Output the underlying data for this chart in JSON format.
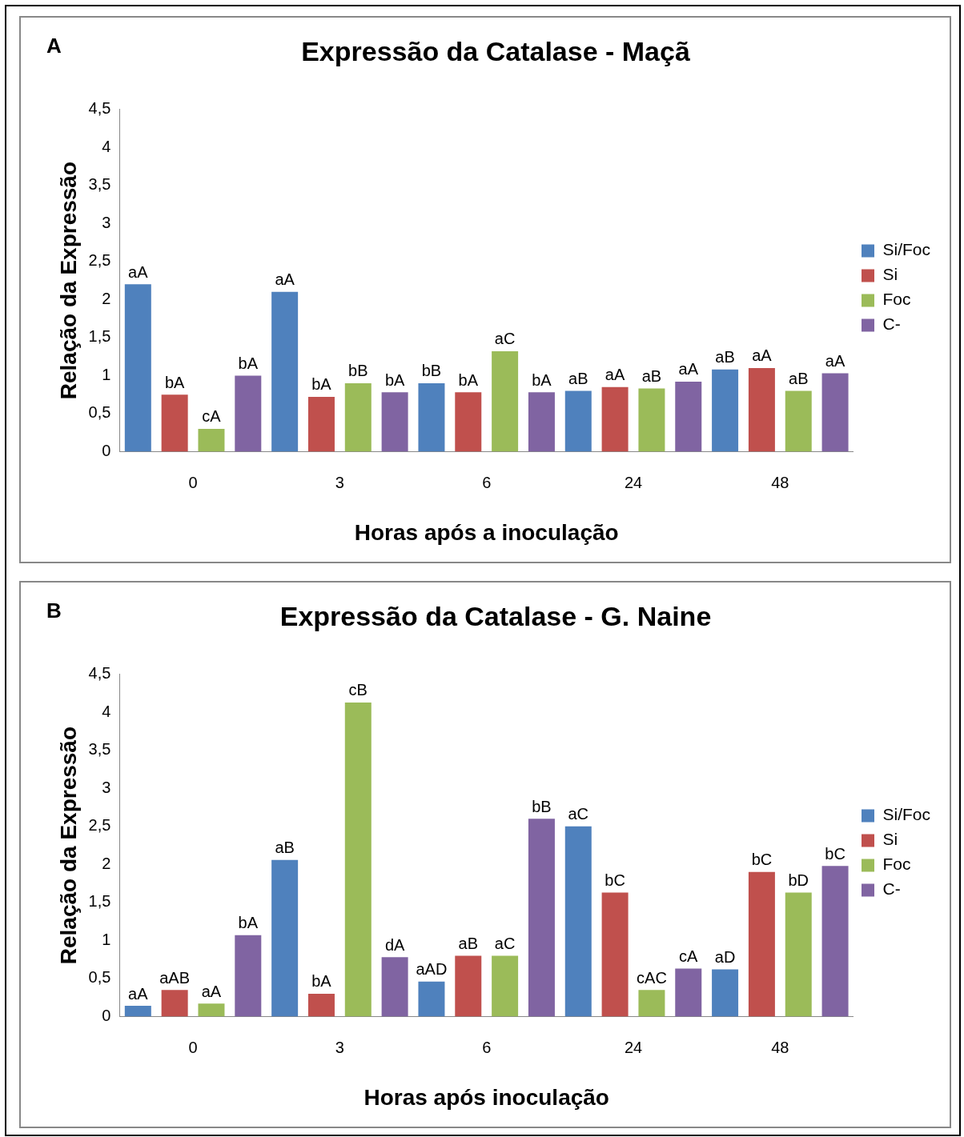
{
  "chart_data": [
    {
      "type": "bar",
      "title": "Expressão da Catalase - Maçã",
      "annotations": [
        "A"
      ],
      "xlabel": "Horas após a inoculação",
      "ylabel": "Relação da Expressão",
      "categories": [
        "0",
        "3",
        "6",
        "24",
        "48"
      ],
      "ylim": [
        0,
        4.5
      ],
      "yticks": [
        0,
        {
          "value": 0.5,
          "label": "0,5"
        },
        1,
        {
          "value": 1.5,
          "label": "1,5"
        },
        2,
        {
          "value": 2.5,
          "label": "2,5"
        },
        3,
        {
          "value": 3.5,
          "label": "3,5"
        },
        4,
        {
          "value": 4.5,
          "label": "4,5"
        }
      ],
      "grid": false,
      "legend": "right",
      "series": [
        {
          "name": "Si/Foc",
          "color": "#4f81bd",
          "values": [
            2.2,
            2.1,
            0.9,
            0.8,
            1.08
          ],
          "value_labels": [
            "aA",
            "aA",
            "bB",
            "aB",
            "aB"
          ]
        },
        {
          "name": "Si",
          "color": "#c0504d",
          "values": [
            0.75,
            0.72,
            0.78,
            0.85,
            1.1
          ],
          "value_labels": [
            "bA",
            "bA",
            "bA",
            "aA",
            "aA"
          ]
        },
        {
          "name": "Foc",
          "color": "#9bbb59",
          "values": [
            0.3,
            0.9,
            1.32,
            0.83,
            0.8
          ],
          "value_labels": [
            "cA",
            "bB",
            "aC",
            "aB",
            "aB"
          ]
        },
        {
          "name": "C-",
          "color": "#8064a2",
          "values": [
            1.0,
            0.78,
            0.78,
            0.92,
            1.03
          ],
          "value_labels": [
            "bA",
            "bA",
            "bA",
            "aA",
            "aA"
          ]
        }
      ]
    },
    {
      "type": "bar",
      "title": "Expressão da Catalase - G. Naine",
      "annotations": [
        "B"
      ],
      "xlabel": "Horas após inoculação",
      "ylabel": "Relação da Expressão",
      "categories": [
        "0",
        "3",
        "6",
        "24",
        "48"
      ],
      "ylim": [
        0,
        4.5
      ],
      "yticks": [
        0,
        {
          "value": 0.5,
          "label": "0,5"
        },
        1,
        {
          "value": 1.5,
          "label": "1,5"
        },
        2,
        {
          "value": 2.5,
          "label": "2,5"
        },
        3,
        {
          "value": 3.5,
          "label": "3,5"
        },
        4,
        {
          "value": 4.5,
          "label": "4,5"
        }
      ],
      "grid": false,
      "legend": "right",
      "series": [
        {
          "name": "Si/Foc",
          "color": "#4f81bd",
          "values": [
            0.14,
            2.06,
            0.46,
            2.5,
            0.62
          ],
          "value_labels": [
            "aA",
            "aB",
            "aAD",
            "aC",
            "aD"
          ]
        },
        {
          "name": "Si",
          "color": "#c0504d",
          "values": [
            0.35,
            0.3,
            0.8,
            1.63,
            1.9
          ],
          "value_labels": [
            "aAB",
            "bA",
            "aB",
            "bC",
            "bC"
          ]
        },
        {
          "name": "Foc",
          "color": "#9bbb59",
          "values": [
            0.17,
            4.13,
            0.8,
            0.35,
            1.63
          ],
          "value_labels": [
            "aA",
            "cB",
            "aC",
            "cAC",
            "bD"
          ]
        },
        {
          "name": "C-",
          "color": "#8064a2",
          "values": [
            1.07,
            0.78,
            2.6,
            0.63,
            1.98
          ],
          "value_labels": [
            "bA",
            "dA",
            "bB",
            "cA",
            "bC"
          ]
        }
      ]
    }
  ]
}
